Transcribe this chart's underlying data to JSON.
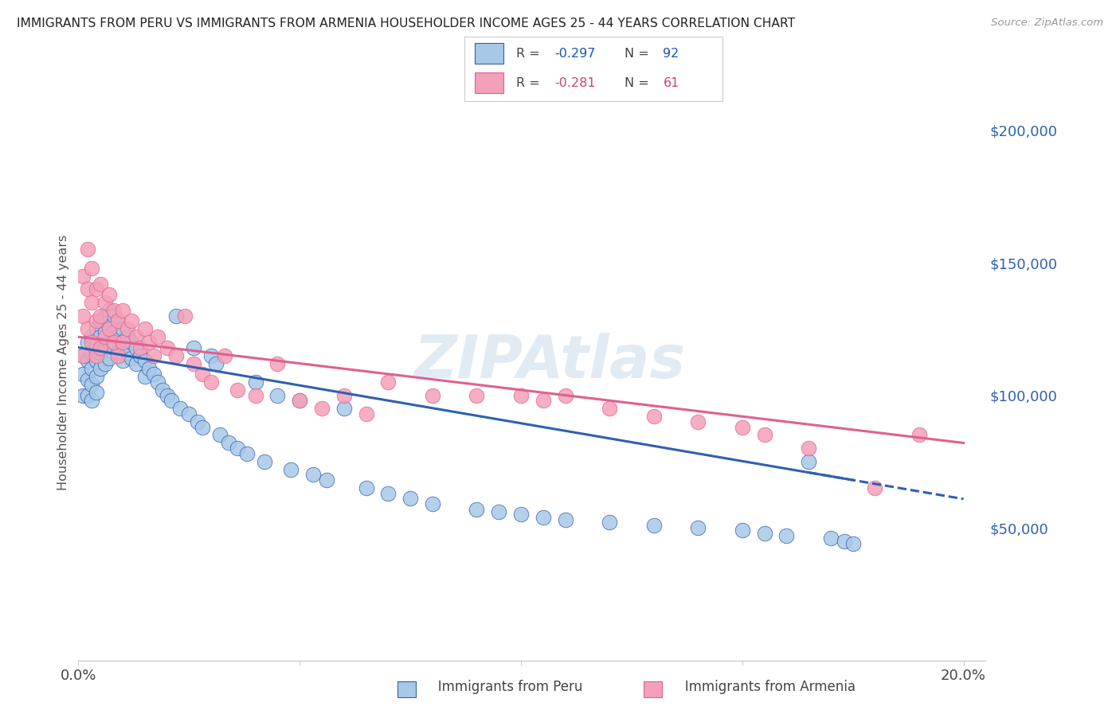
{
  "title": "IMMIGRANTS FROM PERU VS IMMIGRANTS FROM ARMENIA HOUSEHOLDER INCOME AGES 25 - 44 YEARS CORRELATION CHART",
  "source": "Source: ZipAtlas.com",
  "ylabel": "Householder Income Ages 25 - 44 years",
  "xlim": [
    0.0,
    0.205
  ],
  "ylim": [
    0,
    225000
  ],
  "xticks": [
    0.0,
    0.05,
    0.1,
    0.15,
    0.2
  ],
  "xticklabels": [
    "0.0%",
    "",
    "",
    "",
    "20.0%"
  ],
  "yticks_right": [
    50000,
    100000,
    150000,
    200000
  ],
  "ytick_labels_right": [
    "$50,000",
    "$100,000",
    "$150,000",
    "$200,000"
  ],
  "color_peru": "#a8c8e8",
  "color_armenia": "#f4a0b8",
  "color_peru_line": "#3060b0",
  "color_armenia_line": "#e06090",
  "color_right_axis": "#3060b0",
  "peru_r": "-0.297",
  "peru_n": "92",
  "armenia_r": "-0.281",
  "armenia_n": "61",
  "peru_line_x0": 0.0,
  "peru_line_y0": 118000,
  "peru_line_x1": 0.175,
  "peru_line_y1": 68000,
  "peru_line_dash_x0": 0.165,
  "peru_line_dash_x1": 0.2,
  "armenia_line_x0": 0.0,
  "armenia_line_y0": 122000,
  "armenia_line_x1": 0.2,
  "armenia_line_y1": 82000,
  "peru_x": [
    0.001,
    0.001,
    0.001,
    0.002,
    0.002,
    0.002,
    0.002,
    0.003,
    0.003,
    0.003,
    0.003,
    0.003,
    0.004,
    0.004,
    0.004,
    0.004,
    0.004,
    0.005,
    0.005,
    0.005,
    0.005,
    0.006,
    0.006,
    0.006,
    0.006,
    0.007,
    0.007,
    0.007,
    0.007,
    0.008,
    0.008,
    0.008,
    0.009,
    0.009,
    0.009,
    0.01,
    0.01,
    0.01,
    0.011,
    0.011,
    0.012,
    0.012,
    0.013,
    0.013,
    0.014,
    0.015,
    0.015,
    0.016,
    0.017,
    0.018,
    0.019,
    0.02,
    0.021,
    0.022,
    0.023,
    0.025,
    0.026,
    0.027,
    0.028,
    0.03,
    0.031,
    0.032,
    0.034,
    0.036,
    0.038,
    0.04,
    0.042,
    0.045,
    0.048,
    0.05,
    0.053,
    0.056,
    0.06,
    0.065,
    0.07,
    0.075,
    0.08,
    0.09,
    0.095,
    0.1,
    0.105,
    0.11,
    0.12,
    0.13,
    0.14,
    0.15,
    0.155,
    0.16,
    0.165,
    0.17,
    0.173,
    0.175
  ],
  "peru_y": [
    115000,
    108000,
    100000,
    120000,
    113000,
    106000,
    100000,
    122000,
    116000,
    110000,
    104000,
    98000,
    125000,
    119000,
    113000,
    107000,
    101000,
    128000,
    122000,
    116000,
    110000,
    130000,
    124000,
    118000,
    112000,
    132000,
    126000,
    120000,
    114000,
    130000,
    124000,
    118000,
    128000,
    122000,
    116000,
    125000,
    119000,
    113000,
    122000,
    116000,
    120000,
    114000,
    118000,
    112000,
    115000,
    113000,
    107000,
    110000,
    108000,
    105000,
    102000,
    100000,
    98000,
    130000,
    95000,
    93000,
    118000,
    90000,
    88000,
    115000,
    112000,
    85000,
    82000,
    80000,
    78000,
    105000,
    75000,
    100000,
    72000,
    98000,
    70000,
    68000,
    95000,
    65000,
    63000,
    61000,
    59000,
    57000,
    56000,
    55000,
    54000,
    53000,
    52000,
    51000,
    50000,
    49000,
    48000,
    47000,
    75000,
    46000,
    45000,
    44000
  ],
  "armenia_x": [
    0.001,
    0.001,
    0.001,
    0.002,
    0.002,
    0.002,
    0.003,
    0.003,
    0.003,
    0.004,
    0.004,
    0.004,
    0.005,
    0.005,
    0.005,
    0.006,
    0.006,
    0.007,
    0.007,
    0.008,
    0.008,
    0.009,
    0.009,
    0.01,
    0.01,
    0.011,
    0.012,
    0.013,
    0.014,
    0.015,
    0.016,
    0.017,
    0.018,
    0.02,
    0.022,
    0.024,
    0.026,
    0.028,
    0.03,
    0.033,
    0.036,
    0.04,
    0.045,
    0.05,
    0.055,
    0.06,
    0.065,
    0.07,
    0.08,
    0.09,
    0.1,
    0.105,
    0.11,
    0.12,
    0.13,
    0.14,
    0.15,
    0.155,
    0.165,
    0.18,
    0.19
  ],
  "armenia_y": [
    145000,
    130000,
    115000,
    155000,
    140000,
    125000,
    148000,
    135000,
    120000,
    140000,
    128000,
    115000,
    142000,
    130000,
    118000,
    135000,
    122000,
    138000,
    125000,
    132000,
    120000,
    128000,
    115000,
    132000,
    120000,
    125000,
    128000,
    122000,
    118000,
    125000,
    120000,
    115000,
    122000,
    118000,
    115000,
    130000,
    112000,
    108000,
    105000,
    115000,
    102000,
    100000,
    112000,
    98000,
    95000,
    100000,
    93000,
    105000,
    100000,
    100000,
    100000,
    98000,
    100000,
    95000,
    92000,
    90000,
    88000,
    85000,
    80000,
    65000,
    85000
  ]
}
